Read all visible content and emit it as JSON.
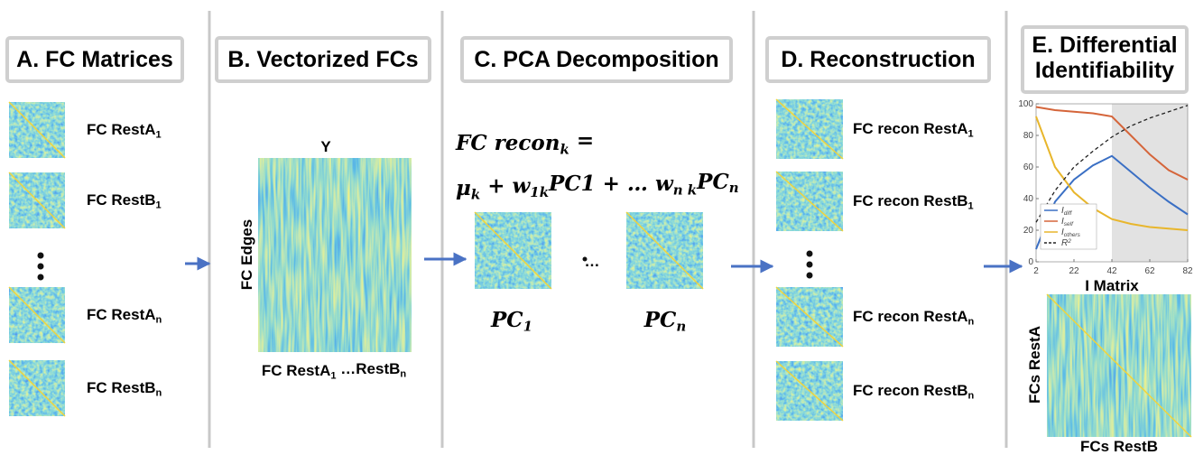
{
  "panels": [
    {
      "title": [
        "A. FC Matrices"
      ],
      "labels": [
        [
          {
            "text": "FC RestA"
          },
          {
            "sub": "1"
          }
        ],
        [
          {
            "text": "FC RestB"
          },
          {
            "sub": "1"
          }
        ],
        [
          {
            "text": "FC RestA"
          },
          {
            "sub": "n"
          }
        ],
        [
          {
            "text": "FC RestB"
          },
          {
            "sub": "n"
          }
        ]
      ]
    },
    {
      "title": [
        "B. Vectorized FCs"
      ],
      "matrix_title": "Y",
      "y_label": "FC Edges",
      "x_label": [
        {
          "text": "FC RestA"
        },
        {
          "sub": "1"
        },
        {
          "text": " …RestB"
        },
        {
          "sub": "n"
        }
      ]
    },
    {
      "title": [
        "C. PCA Decomposition"
      ],
      "formula": [
        [
          {
            "text": "FC recon"
          },
          {
            "sub": "k"
          },
          {
            "text": " ="
          }
        ],
        [
          {
            "text": "μ"
          },
          {
            "sub": "k"
          },
          {
            "text": " + w"
          },
          {
            "sub": "1k"
          },
          {
            "text": "PC1 + … w"
          },
          {
            "sub": "n k"
          },
          {
            "text": "PC"
          },
          {
            "sub": "n"
          }
        ]
      ],
      "ellipsis": "…",
      "components": [
        [
          {
            "text": "PC"
          },
          {
            "sub": "1"
          }
        ],
        [
          {
            "text": "PC"
          },
          {
            "sub": "n"
          }
        ]
      ]
    },
    {
      "title": [
        "D. Reconstruction"
      ],
      "labels": [
        [
          {
            "text": "FC recon RestA"
          },
          {
            "sub": "1"
          }
        ],
        [
          {
            "text": "FC recon RestB"
          },
          {
            "sub": "1"
          }
        ],
        [
          {
            "text": "FC recon RestA"
          },
          {
            "sub": "n"
          }
        ],
        [
          {
            "text": "FC recon RestB"
          },
          {
            "sub": "n"
          }
        ]
      ]
    },
    {
      "title": [
        "E. Differential",
        "Identifiability"
      ],
      "matrix_title": "I Matrix",
      "y_label": "FCs  RestA",
      "x_label": "FCs  RestB"
    }
  ],
  "chart_data": {
    "type": "line",
    "x": [
      2,
      12,
      22,
      32,
      42,
      52,
      62,
      72,
      82
    ],
    "xlim": [
      2,
      82
    ],
    "ylim": [
      0,
      100
    ],
    "xticks": [
      2,
      22,
      42,
      62,
      82
    ],
    "yticks": [
      0,
      20,
      40,
      60,
      80,
      100
    ],
    "shaded_range": [
      42,
      82
    ],
    "series": [
      {
        "name": [
          {
            "text": "I"
          },
          {
            "sub": "diff"
          }
        ],
        "color": "#3a6fc4",
        "values": [
          8,
          38,
          52,
          61,
          67,
          57,
          47,
          38,
          30
        ]
      },
      {
        "name": [
          {
            "text": "I"
          },
          {
            "sub": "self"
          }
        ],
        "color": "#d5653a",
        "values": [
          98,
          96,
          95,
          94,
          92,
          80,
          68,
          58,
          52
        ]
      },
      {
        "name": [
          {
            "text": "I"
          },
          {
            "sub": "others"
          }
        ],
        "color": "#e8b62c",
        "values": [
          92,
          60,
          44,
          34,
          27,
          24,
          22,
          21,
          20
        ]
      },
      {
        "name": [
          {
            "text": "R"
          },
          {
            "sup": "2"
          }
        ],
        "color": "#222222",
        "dash": true,
        "values": [
          25,
          45,
          60,
          70,
          79,
          86,
          91,
          95,
          99
        ]
      }
    ]
  }
}
